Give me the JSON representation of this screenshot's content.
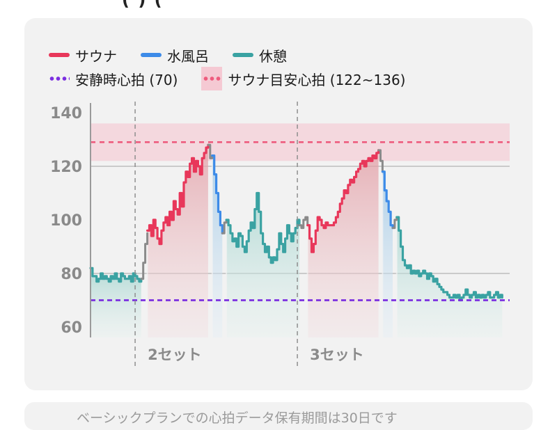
{
  "header": {
    "fragment": "( ) ("
  },
  "legend": {
    "sauna": {
      "label": "サウナ",
      "color": "#e8375a"
    },
    "water": {
      "label": "水風呂",
      "color": "#3d8be8"
    },
    "rest": {
      "label": "休憩",
      "color": "#3aa2a2"
    },
    "resting_hr": {
      "label": "安静時心拍 (70)",
      "color": "#7b2fe0"
    },
    "target": {
      "label": "サウナ目安心拍 (122~136)",
      "color": "#ee5b7d",
      "band_color": "#f5c9d3"
    }
  },
  "chart_data": {
    "type": "line",
    "ylim": [
      58,
      143
    ],
    "yticks": [
      "60",
      "80",
      "100",
      "120",
      "140"
    ],
    "grid_y": [
      80,
      120
    ],
    "resting_hr": 70,
    "target_band": [
      122,
      136
    ],
    "target_line": 129,
    "set_labels": [
      "2セット",
      "3セット"
    ],
    "segments": [
      {
        "phase": "rest",
        "points": [
          [
            0,
            82
          ],
          [
            1,
            79
          ],
          [
            2,
            79
          ],
          [
            3,
            77
          ],
          [
            4,
            78
          ],
          [
            5,
            80
          ],
          [
            6,
            78
          ],
          [
            7,
            79
          ],
          [
            8,
            78
          ],
          [
            9,
            77
          ],
          [
            10,
            79
          ],
          [
            11,
            78
          ],
          [
            12,
            80
          ],
          [
            13,
            78
          ],
          [
            14,
            77
          ],
          [
            15,
            80
          ],
          [
            16,
            79
          ],
          [
            17,
            78
          ],
          [
            18,
            78
          ],
          [
            19,
            79
          ],
          [
            20,
            77
          ],
          [
            21,
            80
          ],
          [
            22,
            79
          ],
          [
            23,
            78
          ],
          [
            24,
            77
          ],
          [
            25,
            78
          ]
        ]
      },
      {
        "phase": "transition",
        "points": [
          [
            25,
            78
          ],
          [
            26,
            84
          ],
          [
            27,
            91
          ],
          [
            28,
            95
          ]
        ]
      },
      {
        "phase": "sauna",
        "points": [
          [
            28,
            96
          ],
          [
            29,
            98
          ],
          [
            30,
            94
          ],
          [
            31,
            100
          ],
          [
            32,
            97
          ],
          [
            33,
            93
          ],
          [
            34,
            91
          ],
          [
            35,
            96
          ],
          [
            36,
            99
          ],
          [
            37,
            101
          ],
          [
            38,
            98
          ],
          [
            39,
            103
          ],
          [
            40,
            100
          ],
          [
            41,
            107
          ],
          [
            42,
            104
          ],
          [
            43,
            102
          ],
          [
            44,
            110
          ],
          [
            45,
            105
          ],
          [
            46,
            114
          ],
          [
            47,
            118
          ],
          [
            48,
            116
          ],
          [
            49,
            121
          ],
          [
            50,
            123
          ],
          [
            51,
            118
          ],
          [
            52,
            122
          ],
          [
            53,
            120
          ],
          [
            54,
            117
          ],
          [
            55,
            123
          ],
          [
            56,
            125
          ],
          [
            57,
            127
          ],
          [
            58,
            128
          ]
        ]
      },
      {
        "phase": "transition",
        "points": [
          [
            58,
            128
          ],
          [
            59,
            123
          ],
          [
            60,
            124
          ]
        ]
      },
      {
        "phase": "water",
        "points": [
          [
            60,
            124
          ],
          [
            61,
            117
          ],
          [
            62,
            110
          ],
          [
            63,
            103
          ],
          [
            64,
            98
          ],
          [
            65,
            95
          ]
        ]
      },
      {
        "phase": "transition",
        "points": [
          [
            65,
            95
          ],
          [
            66,
            99
          ],
          [
            67,
            100
          ]
        ]
      },
      {
        "phase": "rest",
        "points": [
          [
            67,
            100
          ],
          [
            68,
            98
          ],
          [
            69,
            95
          ],
          [
            70,
            92
          ],
          [
            71,
            93
          ],
          [
            72,
            90
          ],
          [
            73,
            95
          ],
          [
            74,
            94
          ],
          [
            75,
            90
          ],
          [
            76,
            88
          ],
          [
            77,
            92
          ],
          [
            78,
            96
          ],
          [
            79,
            99
          ],
          [
            80,
            97
          ],
          [
            81,
            104
          ],
          [
            82,
            110
          ],
          [
            83,
            103
          ],
          [
            84,
            95
          ],
          [
            85,
            91
          ],
          [
            86,
            88
          ],
          [
            87,
            90
          ],
          [
            88,
            86
          ],
          [
            89,
            84
          ],
          [
            90,
            86
          ],
          [
            91,
            85
          ],
          [
            92,
            89
          ],
          [
            93,
            95
          ],
          [
            94,
            91
          ],
          [
            95,
            88
          ],
          [
            96,
            93
          ],
          [
            97,
            98
          ],
          [
            98,
            95
          ],
          [
            99,
            92
          ],
          [
            100,
            95
          ],
          [
            101,
            97
          ],
          [
            102,
            100
          ],
          [
            103,
            98
          ]
        ]
      },
      {
        "phase": "transition",
        "points": [
          [
            103,
            98
          ],
          [
            104,
            97
          ],
          [
            105,
            100
          ],
          [
            106,
            101
          ],
          [
            107,
            98
          ]
        ]
      },
      {
        "phase": "sauna",
        "points": [
          [
            107,
            98
          ],
          [
            108,
            93
          ],
          [
            109,
            88
          ],
          [
            110,
            91
          ],
          [
            111,
            96
          ],
          [
            112,
            101
          ],
          [
            113,
            100
          ],
          [
            114,
            98
          ],
          [
            115,
            97
          ],
          [
            116,
            99
          ],
          [
            117,
            98
          ],
          [
            118,
            98
          ],
          [
            119,
            98
          ],
          [
            120,
            99
          ],
          [
            121,
            101
          ],
          [
            122,
            103
          ],
          [
            123,
            106
          ],
          [
            124,
            108
          ],
          [
            125,
            111
          ],
          [
            126,
            110
          ],
          [
            127,
            113
          ],
          [
            128,
            115
          ],
          [
            129,
            114
          ],
          [
            130,
            116
          ],
          [
            131,
            118
          ],
          [
            132,
            119
          ],
          [
            133,
            121
          ],
          [
            134,
            122
          ],
          [
            135,
            120
          ],
          [
            136,
            122
          ],
          [
            137,
            123
          ],
          [
            138,
            122
          ],
          [
            139,
            124
          ],
          [
            140,
            123
          ],
          [
            141,
            125
          ],
          [
            142,
            126
          ]
        ]
      },
      {
        "phase": "transition",
        "points": [
          [
            142,
            126
          ],
          [
            143,
            122
          ],
          [
            144,
            118
          ]
        ]
      },
      {
        "phase": "water",
        "points": [
          [
            144,
            118
          ],
          [
            145,
            111
          ],
          [
            146,
            107
          ],
          [
            147,
            103
          ],
          [
            148,
            98
          ],
          [
            149,
            97
          ]
        ]
      },
      {
        "phase": "transition",
        "points": [
          [
            149,
            97
          ],
          [
            150,
            100
          ],
          [
            151,
            101
          ]
        ]
      },
      {
        "phase": "rest",
        "points": [
          [
            151,
            101
          ],
          [
            152,
            96
          ],
          [
            153,
            90
          ],
          [
            154,
            85
          ],
          [
            155,
            83
          ],
          [
            156,
            82
          ],
          [
            157,
            83
          ],
          [
            158,
            80
          ],
          [
            159,
            81
          ],
          [
            160,
            80
          ],
          [
            161,
            81
          ],
          [
            162,
            79
          ],
          [
            163,
            80
          ],
          [
            164,
            81
          ],
          [
            165,
            80
          ],
          [
            166,
            78
          ],
          [
            167,
            80
          ],
          [
            168,
            79
          ],
          [
            169,
            77
          ],
          [
            170,
            78
          ],
          [
            171,
            76
          ],
          [
            172,
            75
          ],
          [
            173,
            74
          ],
          [
            174,
            73
          ],
          [
            175,
            73
          ],
          [
            176,
            72
          ],
          [
            177,
            71
          ],
          [
            178,
            71
          ],
          [
            179,
            72
          ],
          [
            180,
            71
          ],
          [
            181,
            72
          ],
          [
            182,
            70
          ],
          [
            183,
            71
          ],
          [
            184,
            72
          ],
          [
            185,
            74
          ],
          [
            186,
            72
          ],
          [
            187,
            71
          ],
          [
            188,
            72
          ],
          [
            189,
            73
          ],
          [
            190,
            71
          ],
          [
            191,
            72
          ],
          [
            192,
            71
          ],
          [
            193,
            72
          ],
          [
            194,
            71
          ],
          [
            195,
            72
          ],
          [
            196,
            73
          ],
          [
            197,
            71
          ],
          [
            198,
            71
          ],
          [
            199,
            72
          ],
          [
            200,
            73
          ],
          [
            201,
            71
          ],
          [
            202,
            72
          ],
          [
            203,
            71
          ]
        ]
      }
    ],
    "x_domain": [
      0,
      206
    ],
    "set_markers": [
      22,
      102
    ]
  },
  "footer": {
    "text": "ベーシックプランでの心拍データ保有期間は30日です"
  }
}
